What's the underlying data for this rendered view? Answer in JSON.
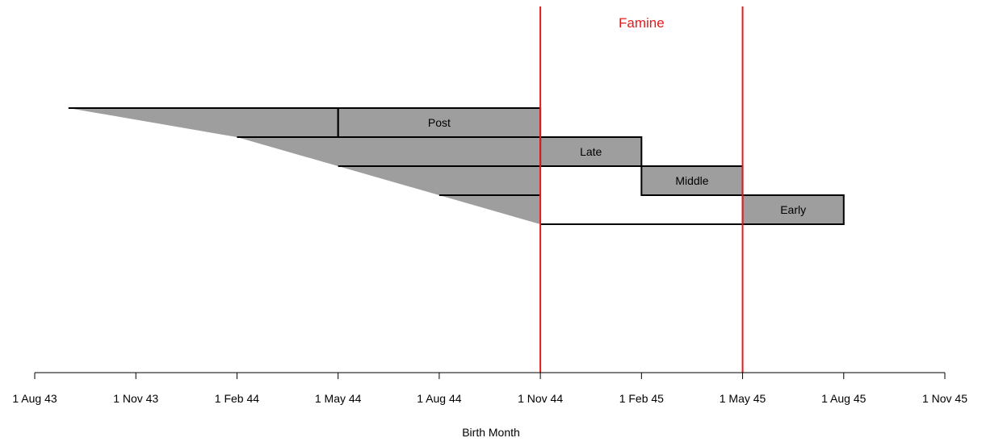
{
  "chart_data": {
    "type": "timeline",
    "xlabel": "Birth Month",
    "x_ticks": [
      "1 Aug 43",
      "1 Nov 43",
      "1 Feb 44",
      "1 May 44",
      "1 Aug 44",
      "1 Nov 44",
      "1 Feb 45",
      "1 May 45",
      "1 Aug 45",
      "1 Nov 45"
    ],
    "xlim": [
      "1 Aug 43",
      "1 Nov 45"
    ],
    "famine": {
      "label": "Famine",
      "start": "1 Nov 44",
      "end": "1 May 45",
      "color": "#e41a1c"
    },
    "gestation_fill_color": "#9e9e9e",
    "groups": [
      {
        "label": "Post",
        "trimester_start": "1 May 44",
        "trimester_end": "1 Nov 44",
        "gestation_start": "1 Sep 43",
        "gestation_lead_in_start": "1 May 44"
      },
      {
        "label": "Late",
        "trimester_start": "1 Nov 44",
        "trimester_end": "1 Feb 45",
        "gestation_start": "1 Feb 44"
      },
      {
        "label": "Middle",
        "trimester_start": "1 Feb 45",
        "trimester_end": "1 May 45",
        "gestation_start": "1 May 44"
      },
      {
        "label": "Early",
        "trimester_start": "1 May 45",
        "trimester_end": "1 Aug 45",
        "gestation_start": "1 Aug 44"
      }
    ]
  }
}
